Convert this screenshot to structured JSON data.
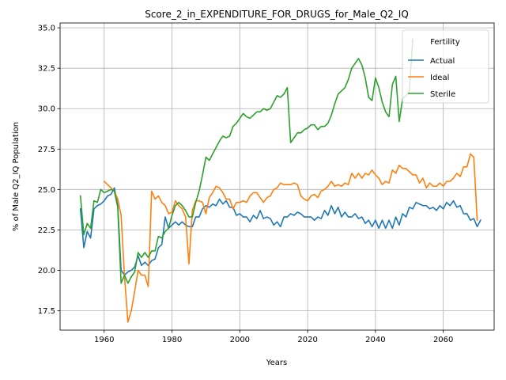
{
  "chart_data": {
    "type": "line",
    "title": "Score_2_in_EXPENDITURE_FOR_DRUGS_for_Male_Q2_IQ",
    "xlabel": "Years",
    "ylabel": "% of Male Q2_IQ Population",
    "xlim": [
      1947,
      2075
    ],
    "ylim": [
      16.3,
      35.3
    ],
    "xticks": [
      1960,
      1980,
      2000,
      2020,
      2040,
      2060
    ],
    "yticks": [
      17.5,
      20.0,
      22.5,
      25.0,
      27.5,
      30.0,
      32.5,
      35.0
    ],
    "ytick_labels": [
      "17.5",
      "20.0",
      "22.5",
      "25.0",
      "27.5",
      "30.0",
      "32.5",
      "35.0"
    ],
    "grid": true,
    "legend": {
      "title": "Fertility",
      "placement": "top-right"
    },
    "series": [
      {
        "name": "Actual",
        "color": "#1f77b4",
        "x_start": 1953,
        "values": [
          23.8,
          21.4,
          22.4,
          22.0,
          23.8,
          24.0,
          24.1,
          24.3,
          24.6,
          24.7,
          25.1,
          24.0,
          20.0,
          19.7,
          19.9,
          20.0,
          20.2,
          20.9,
          20.3,
          20.5,
          20.3,
          20.6,
          20.7,
          21.4,
          21.6,
          23.3,
          22.6,
          22.8,
          23.0,
          22.8,
          23.0,
          22.8,
          22.7,
          22.7,
          23.3,
          23.3,
          23.8,
          24.0,
          23.9,
          24.1,
          24.0,
          24.4,
          24.1,
          24.3,
          23.9,
          23.9,
          23.4,
          23.5,
          23.3,
          23.3,
          23.0,
          23.4,
          23.2,
          23.7,
          23.2,
          23.3,
          23.2,
          22.8,
          23.0,
          22.7,
          23.3,
          23.3,
          23.5,
          23.4,
          23.6,
          23.5,
          23.3,
          23.3,
          23.3,
          23.1,
          23.3,
          23.2,
          23.7,
          23.4,
          24.0,
          23.5,
          23.9,
          23.3,
          23.6,
          23.3,
          23.3,
          23.5,
          23.2,
          23.3,
          22.9,
          23.1,
          22.7,
          23.1,
          22.6,
          23.1,
          22.6,
          23.1,
          22.6,
          23.3,
          22.8,
          23.5,
          23.3,
          23.9,
          23.8,
          24.2,
          24.1,
          24.0,
          24.0,
          23.8,
          23.9,
          23.7,
          24.0,
          23.8,
          24.2,
          24.0,
          24.3,
          23.9,
          24.0,
          23.5,
          23.5,
          23.1,
          23.2,
          22.7,
          23.1
        ],
        "note_x_end": 2070
      },
      {
        "name": "Ideal",
        "color": "#ff7f0e",
        "x_start": 1960,
        "values": [
          25.5,
          25.3,
          25.1,
          24.9,
          24.4,
          23.4,
          19.6,
          16.8,
          17.5,
          18.7,
          20.0,
          19.7,
          19.7,
          19.0,
          24.9,
          24.4,
          24.6,
          24.2,
          24.0,
          23.5,
          23.6,
          24.3,
          24.0,
          23.8,
          23.3,
          20.4,
          23.7,
          24.3,
          24.3,
          24.2,
          23.5,
          24.5,
          24.8,
          25.2,
          25.1,
          24.8,
          24.4,
          24.4,
          23.8,
          24.2,
          24.2,
          24.3,
          24.2,
          24.6,
          24.8,
          24.8,
          24.5,
          24.2,
          24.5,
          24.6,
          25.0,
          25.1,
          25.4,
          25.3,
          25.3,
          25.3,
          25.4,
          25.3,
          24.6,
          24.4,
          24.3,
          24.6,
          24.7,
          24.5,
          24.9,
          25.0,
          25.2,
          25.5,
          25.2,
          25.3,
          25.2,
          25.4,
          25.3,
          26.0,
          25.7,
          26.0,
          25.7,
          26.0,
          25.9,
          26.2,
          25.9,
          25.7,
          25.3,
          25.5,
          25.4,
          26.2,
          26.0,
          26.5,
          26.3,
          26.3,
          26.1,
          25.9,
          25.9,
          25.4,
          25.7,
          25.1,
          25.4,
          25.2,
          25.2,
          25.4,
          25.2,
          25.5,
          25.5,
          25.7,
          26.0,
          25.8,
          26.4,
          26.4,
          27.2,
          27.0,
          23.1
        ]
      },
      {
        "name": "Sterile",
        "color": "#2ca02c",
        "x_start": 1953,
        "values": [
          24.6,
          22.2,
          22.9,
          22.6,
          24.3,
          24.2,
          25.0,
          24.8,
          24.9,
          25.0,
          24.9,
          23.9,
          19.2,
          19.7,
          19.2,
          19.6,
          19.9,
          21.1,
          20.8,
          21.1,
          20.8,
          21.2,
          21.2,
          22.1,
          22.0,
          22.4,
          22.6,
          23.4,
          24.0,
          24.2,
          24.0,
          23.7,
          23.3,
          23.3,
          24.2,
          24.9,
          25.9,
          27.0,
          26.8,
          27.2,
          27.6,
          28.0,
          28.3,
          28.2,
          28.3,
          28.9,
          29.1,
          29.4,
          29.7,
          29.5,
          29.4,
          29.6,
          29.8,
          29.8,
          30.0,
          29.9,
          30.0,
          30.4,
          30.8,
          30.7,
          30.9,
          31.3,
          27.9,
          28.2,
          28.5,
          28.5,
          28.7,
          28.8,
          29.0,
          29.0,
          28.7,
          28.9,
          28.9,
          29.1,
          29.6,
          30.3,
          30.9,
          31.1,
          31.3,
          31.8,
          32.5,
          32.8,
          33.1,
          32.7,
          31.9,
          30.7,
          30.5,
          31.9,
          31.3,
          30.4,
          29.8,
          29.5,
          31.5,
          32.0,
          29.2,
          30.6,
          30.8,
          31.1,
          34.3
        ]
      }
    ]
  }
}
